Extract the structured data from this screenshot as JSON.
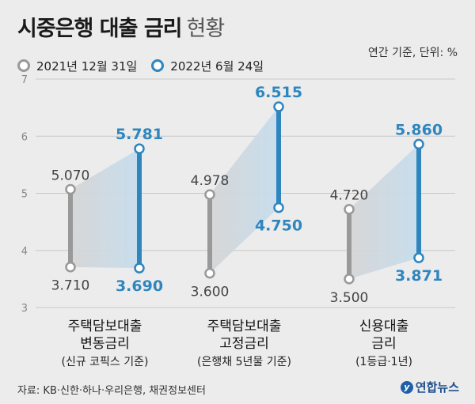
{
  "title": "시중은행 대출 금리",
  "title_suffix": "현황",
  "unit_note": "연간 기준, 단위: %",
  "source": "자료: KB·신한·하나·우리은행, 채권정보센터",
  "brand": "연합뉴스",
  "brand_logo": "y",
  "colors": {
    "gray": "#999999",
    "blue": "#2f86bf",
    "gray_text": "#444444"
  },
  "chart_data": {
    "type": "range",
    "ylim": [
      3,
      7
    ],
    "yticks": [
      "3",
      "4",
      "5",
      "6",
      "7"
    ],
    "grid": true,
    "legend_position": "top-left",
    "series": [
      {
        "name": "2021년 12월 31일",
        "color": "#999999"
      },
      {
        "name": "2022년 6월 24일",
        "color": "#2f86bf"
      }
    ],
    "categories": [
      {
        "label": [
          "주택담보대출",
          "변동금리"
        ],
        "note": "(신규 코픽스 기준)",
        "ranges": [
          {
            "high": 5.07,
            "low": 3.71
          },
          {
            "high": 5.781,
            "low": 3.69
          }
        ],
        "labels": [
          {
            "high": "5.070",
            "low": "3.710"
          },
          {
            "high": "5.781",
            "low": "3.690"
          }
        ]
      },
      {
        "label": [
          "주택담보대출",
          "고정금리"
        ],
        "note": "(은행채 5년물 기준)",
        "ranges": [
          {
            "high": 4.978,
            "low": 3.6
          },
          {
            "high": 6.515,
            "low": 4.75
          }
        ],
        "labels": [
          {
            "high": "4.978",
            "low": "3.600"
          },
          {
            "high": "6.515",
            "low": "4.750"
          }
        ]
      },
      {
        "label": [
          "신용대출",
          "금리"
        ],
        "note": "(1등급·1년)",
        "ranges": [
          {
            "high": 4.72,
            "low": 3.5
          },
          {
            "high": 5.86,
            "low": 3.871
          }
        ],
        "labels": [
          {
            "high": "4.720",
            "low": "3.500"
          },
          {
            "high": "5.860",
            "low": "3.871"
          }
        ]
      }
    ]
  }
}
